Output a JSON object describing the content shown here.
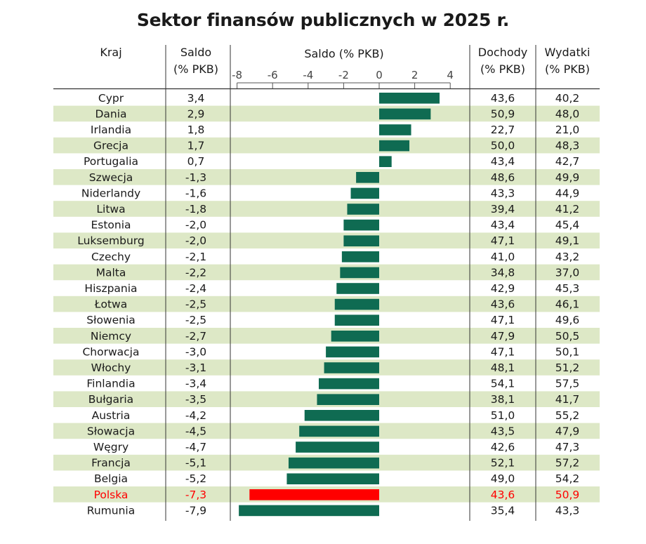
{
  "title": "Sektor finansów publicznych w 2025 r.",
  "headers": {
    "kraj": "Kraj",
    "saldo_1": "Saldo",
    "saldo_2": "(% PKB)",
    "chart_title": "Saldo (% PKB)",
    "dochody_1": "Dochody",
    "dochody_2": "(% PKB)",
    "wydatki_1": "Wydatki",
    "wydatki_2": "(% PKB)"
  },
  "colors": {
    "bar": "#0f6b52",
    "highlight": "#ff0000",
    "stripe": "#dde8c6",
    "text": "#1a1a1a"
  },
  "highlight_country": "Polska",
  "chart_data": {
    "type": "bar",
    "orientation": "horizontal",
    "title": "Saldo (% PKB)",
    "xlim": [
      -8,
      4
    ],
    "ticks": [
      "-8",
      "-6",
      "-4",
      "-2",
      "0",
      "2",
      "4"
    ],
    "tick_values": [
      -8,
      -6,
      -4,
      -2,
      0,
      2,
      4
    ],
    "grid": false,
    "categories": [
      "Cypr",
      "Dania",
      "Irlandia",
      "Grecja",
      "Portugalia",
      "Szwecja",
      "Niderlandy",
      "Litwa",
      "Estonia",
      "Luksemburg",
      "Czechy",
      "Malta",
      "Hiszpania",
      "Łotwa",
      "Słowenia",
      "Niemcy",
      "Chorwacja",
      "Włochy",
      "Finlandia",
      "Bułgaria",
      "Austria",
      "Słowacja",
      "Węgry",
      "Francja",
      "Belgia",
      "Polska",
      "Rumunia"
    ],
    "values": [
      3.4,
      2.9,
      1.8,
      1.7,
      0.7,
      -1.3,
      -1.6,
      -1.8,
      -2.0,
      -2.0,
      -2.1,
      -2.2,
      -2.4,
      -2.5,
      -2.5,
      -2.7,
      -3.0,
      -3.1,
      -3.4,
      -3.5,
      -4.2,
      -4.5,
      -4.7,
      -5.1,
      -5.2,
      -7.3,
      -7.9
    ]
  },
  "table": {
    "saldo": [
      "3,4",
      "2,9",
      "1,8",
      "1,7",
      "0,7",
      "-1,3",
      "-1,6",
      "-1,8",
      "-2,0",
      "-2,0",
      "-2,1",
      "-2,2",
      "-2,4",
      "-2,5",
      "-2,5",
      "-2,7",
      "-3,0",
      "-3,1",
      "-3,4",
      "-3,5",
      "-4,2",
      "-4,5",
      "-4,7",
      "-5,1",
      "-5,2",
      "-7,3",
      "-7,9"
    ],
    "dochody": [
      "43,6",
      "50,9",
      "22,7",
      "50,0",
      "43,4",
      "48,6",
      "43,3",
      "39,4",
      "43,4",
      "47,1",
      "41,0",
      "34,8",
      "42,9",
      "43,6",
      "47,1",
      "47,9",
      "47,1",
      "48,1",
      "54,1",
      "38,1",
      "51,0",
      "43,5",
      "42,6",
      "52,1",
      "49,0",
      "43,6",
      "35,4"
    ],
    "wydatki": [
      "40,2",
      "48,0",
      "21,0",
      "48,3",
      "42,7",
      "49,9",
      "44,9",
      "41,2",
      "45,4",
      "49,1",
      "43,2",
      "37,0",
      "45,3",
      "46,1",
      "49,6",
      "50,5",
      "50,1",
      "51,2",
      "57,5",
      "41,7",
      "55,2",
      "47,9",
      "47,3",
      "57,2",
      "54,2",
      "50,9",
      "43,3"
    ]
  }
}
